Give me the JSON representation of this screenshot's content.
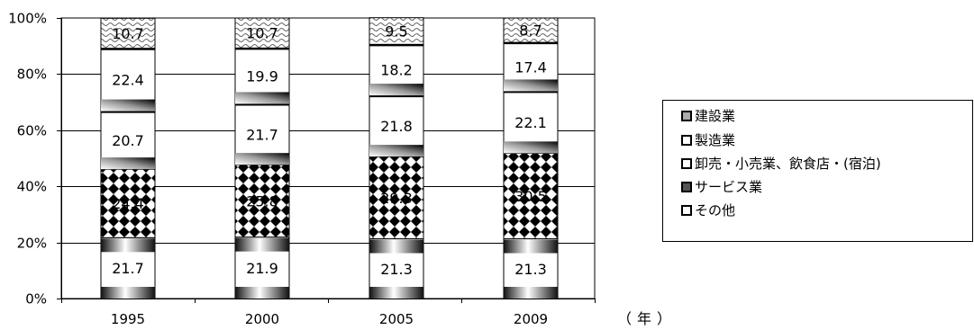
{
  "chart_data": {
    "type": "bar",
    "stacked": true,
    "percent": true,
    "categories": [
      "1995",
      "2000",
      "2005",
      "2009"
    ],
    "x_unit_label": "（年）",
    "y_ticks": [
      "0%",
      "20%",
      "40%",
      "60%",
      "80%",
      "100%"
    ],
    "ylim": [
      0,
      100
    ],
    "series": [
      {
        "name": "その他",
        "values": [
          21.7,
          21.9,
          21.3,
          21.3
        ],
        "pattern": "gradient"
      },
      {
        "name": "サービス業",
        "values": [
          24.4,
          25.8,
          29.3,
          30.5
        ],
        "pattern": "diamond"
      },
      {
        "name": "卸売・小売業、飲食店・(宿泊)",
        "values": [
          20.7,
          21.7,
          21.8,
          22.1
        ],
        "pattern": "gradient"
      },
      {
        "name": "製造業",
        "values": [
          22.4,
          19.9,
          18.2,
          17.4
        ],
        "pattern": "gradient"
      },
      {
        "name": "建設業",
        "values": [
          10.7,
          10.7,
          9.5,
          8.7
        ],
        "pattern": "wave"
      }
    ],
    "legend_order": [
      "建設業",
      "製造業",
      "卸売・小売業、飲食店・(宿泊)",
      "サービス業",
      "その他"
    ],
    "legend_position": "right",
    "grid": true
  }
}
